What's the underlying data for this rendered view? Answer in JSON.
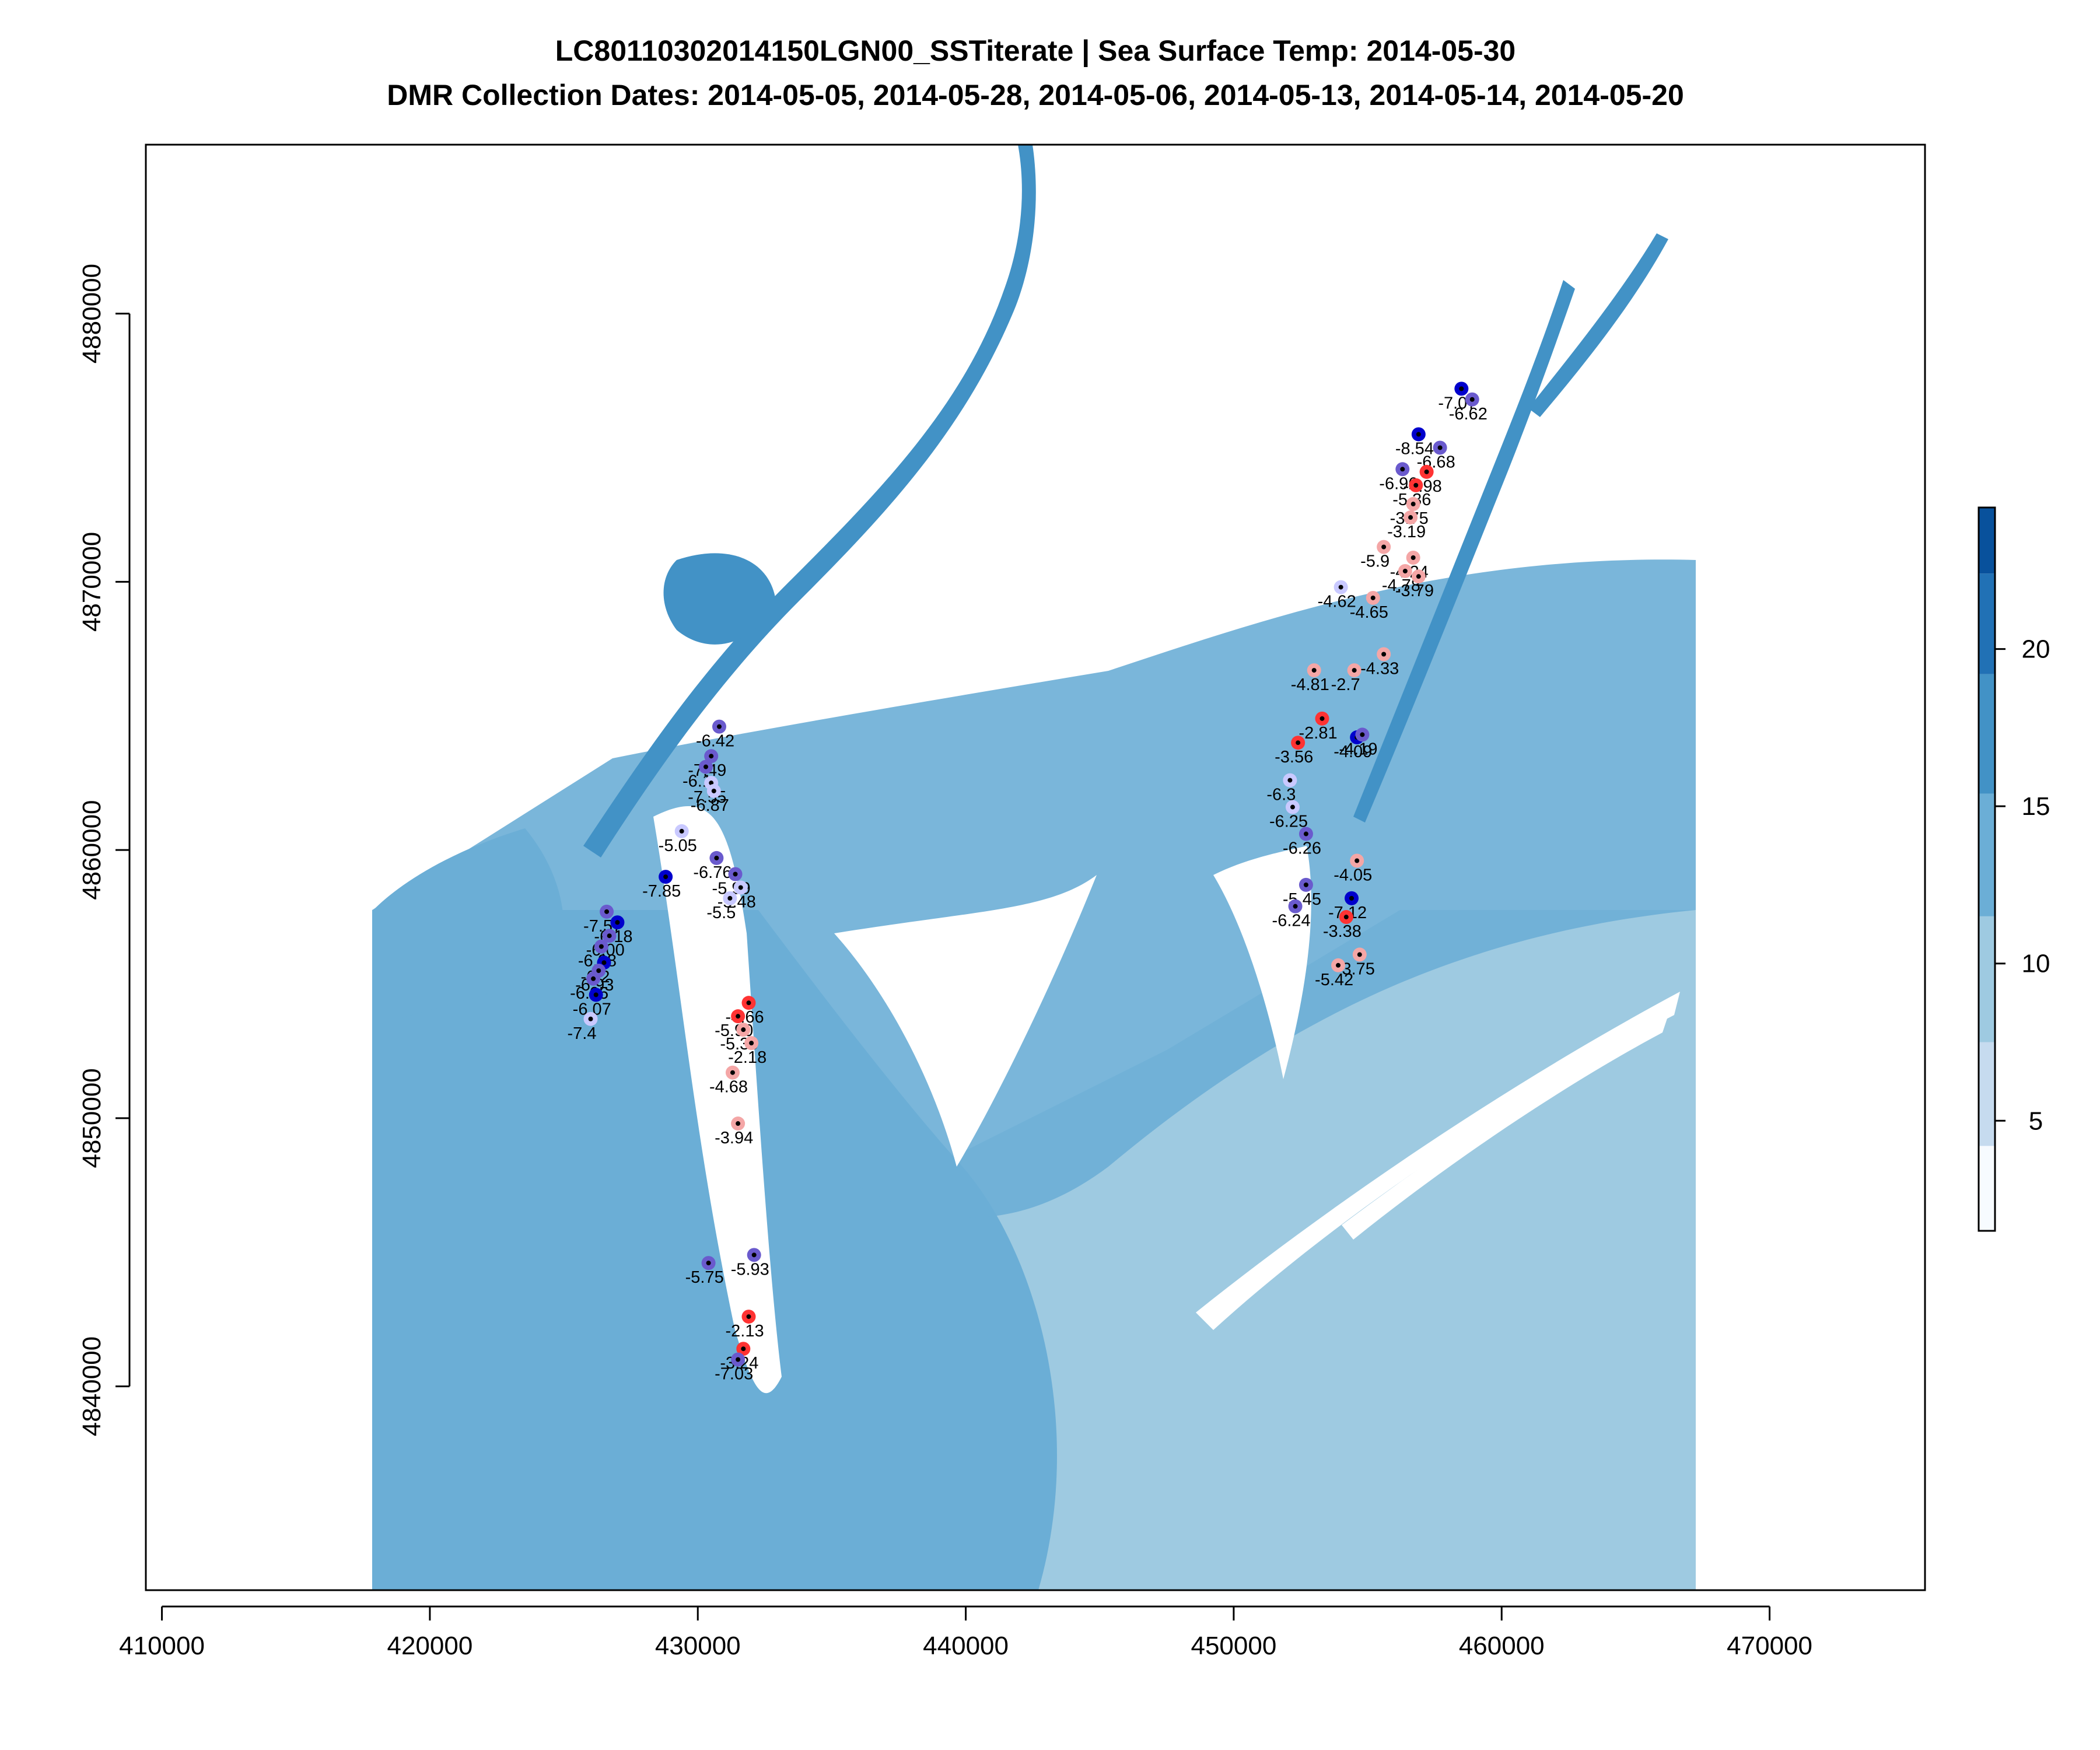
{
  "chart_data": {
    "type": "scatter",
    "title": "LC80110302014150LGN00_SSTiterate | Sea Surface Temp: 2014-05-30",
    "subtitle": "DMR Collection Dates: 2014-05-05, 2014-05-28, 2014-05-06, 2014-05-13, 2014-05-14, 2014-05-20",
    "xlabel": "",
    "ylabel": "",
    "xlim": [
      409400,
      475800
    ],
    "ylim": [
      4832400,
      4886300
    ],
    "x_ticks": [
      "410000",
      "420000",
      "430000",
      "440000",
      "450000",
      "460000",
      "470000"
    ],
    "y_ticks": [
      "4840000",
      "4850000",
      "4860000",
      "4870000",
      "4880000"
    ],
    "grid": false,
    "legend": "right colorbar",
    "colorbar": {
      "ticks": [
        "5",
        "10",
        "15",
        "20"
      ],
      "range": [
        1.5,
        24.5
      ],
      "bins": [
        {
          "from": 1.5,
          "to": 4.2,
          "color": "#f7fbff"
        },
        {
          "from": 4.2,
          "to": 7.5,
          "color": "#c6dbef"
        },
        {
          "from": 7.5,
          "to": 11.5,
          "color": "#9ecae1"
        },
        {
          "from": 11.5,
          "to": 15.4,
          "color": "#6baed6"
        },
        {
          "from": 15.4,
          "to": 19.2,
          "color": "#4292c6"
        },
        {
          "from": 19.2,
          "to": 22.4,
          "color": "#2171b5"
        },
        {
          "from": 22.4,
          "to": 24.5,
          "color": "#08519c"
        }
      ]
    },
    "raster": {
      "extent_x": [
        417800,
        467100
      ],
      "colors": {
        "ocean_outer": "#9ecae1",
        "ocean_inner": "#6baed6",
        "estuary": "#4292c6",
        "upper_river": "#4292c6",
        "land": "#ffffff"
      }
    },
    "point_colors": {
      "negative_strong": "#0000cc",
      "negative_mid": "#6a5acd",
      "negative_light": "#c9c9ff",
      "mild_pink": "#f4a6a6",
      "warm_red": "#ff3333"
    },
    "points": [
      {
        "x": 458500,
        "y": 4877200,
        "label": "-7.07",
        "color": "#0000cc"
      },
      {
        "x": 458900,
        "y": 4876800,
        "label": "-6.62",
        "color": "#6a5acd"
      },
      {
        "x": 456900,
        "y": 4875500,
        "label": "-8.54",
        "color": "#0000cc"
      },
      {
        "x": 457700,
        "y": 4875000,
        "label": "-6.68",
        "color": "#6a5acd"
      },
      {
        "x": 456300,
        "y": 4874200,
        "label": "-6.96",
        "color": "#6a5acd"
      },
      {
        "x": 457200,
        "y": 4874100,
        "label": "-4.98",
        "color": "#ff3333"
      },
      {
        "x": 456800,
        "y": 4873600,
        "label": "-5.36",
        "color": "#ff3333"
      },
      {
        "x": 456700,
        "y": 4872900,
        "label": "-3.75",
        "color": "#f4a6a6"
      },
      {
        "x": 456600,
        "y": 4872400,
        "label": "-3.19",
        "color": "#f4a6a6"
      },
      {
        "x": 455600,
        "y": 4871300,
        "label": "-5.9",
        "color": "#f4a6a6"
      },
      {
        "x": 456700,
        "y": 4870900,
        "label": "-4.24",
        "color": "#f4a6a6"
      },
      {
        "x": 456400,
        "y": 4870400,
        "label": "-4.78",
        "color": "#f4a6a6"
      },
      {
        "x": 456900,
        "y": 4870200,
        "label": "-3.79",
        "color": "#f4a6a6"
      },
      {
        "x": 455200,
        "y": 4869400,
        "label": "-4.65",
        "color": "#f4a6a6"
      },
      {
        "x": 454000,
        "y": 4869800,
        "label": "-4.62",
        "color": "#c9c9ff"
      },
      {
        "x": 455600,
        "y": 4867300,
        "label": "-4.33",
        "color": "#f4a6a6"
      },
      {
        "x": 454500,
        "y": 4866700,
        "label": "-2.7",
        "color": "#f4a6a6"
      },
      {
        "x": 453000,
        "y": 4866700,
        "label": "-4.81",
        "color": "#f4a6a6"
      },
      {
        "x": 453300,
        "y": 4864900,
        "label": "-2.81",
        "color": "#ff3333"
      },
      {
        "x": 454600,
        "y": 4864200,
        "label": "-4.09",
        "color": "#0000cc"
      },
      {
        "x": 452400,
        "y": 4864000,
        "label": "-3.56",
        "color": "#ff3333"
      },
      {
        "x": 454800,
        "y": 4864300,
        "label": "-4.19",
        "color": "#6a5acd"
      },
      {
        "x": 452100,
        "y": 4862600,
        "label": "-6.3",
        "color": "#c9c9ff"
      },
      {
        "x": 452200,
        "y": 4861600,
        "label": "-6.25",
        "color": "#c9c9ff"
      },
      {
        "x": 452700,
        "y": 4860600,
        "label": "-6.26",
        "color": "#6a5acd"
      },
      {
        "x": 454600,
        "y": 4859600,
        "label": "-4.05",
        "color": "#f4a6a6"
      },
      {
        "x": 452700,
        "y": 4858700,
        "label": "-5.45",
        "color": "#6a5acd"
      },
      {
        "x": 454400,
        "y": 4858200,
        "label": "-7.12",
        "color": "#0000cc"
      },
      {
        "x": 454200,
        "y": 4857500,
        "label": "-3.38",
        "color": "#ff3333"
      },
      {
        "x": 452300,
        "y": 4857900,
        "label": "-6.24",
        "color": "#6a5acd"
      },
      {
        "x": 454700,
        "y": 4856100,
        "label": "-3.75",
        "color": "#f4a6a6"
      },
      {
        "x": 453900,
        "y": 4855700,
        "label": "-5.42",
        "color": "#f4a6a6"
      },
      {
        "x": 430800,
        "y": 4864600,
        "label": "-6.42",
        "color": "#6a5acd"
      },
      {
        "x": 430500,
        "y": 4863500,
        "label": "-7.49",
        "color": "#6a5acd"
      },
      {
        "x": 430300,
        "y": 4863100,
        "label": "-6.1",
        "color": "#6a5acd"
      },
      {
        "x": 430500,
        "y": 4862500,
        "label": "-7.55",
        "color": "#c9c9ff"
      },
      {
        "x": 430600,
        "y": 4862200,
        "label": "-6.87",
        "color": "#c9c9ff"
      },
      {
        "x": 429400,
        "y": 4860700,
        "label": "-5.05",
        "color": "#c9c9ff"
      },
      {
        "x": 428800,
        "y": 4859000,
        "label": "-7.85",
        "color": "#0000cc"
      },
      {
        "x": 430700,
        "y": 4859700,
        "label": "-6.76",
        "color": "#6a5acd"
      },
      {
        "x": 431400,
        "y": 4859100,
        "label": "-5.99",
        "color": "#6a5acd"
      },
      {
        "x": 431600,
        "y": 4858600,
        "label": "-5.48",
        "color": "#c9c9ff"
      },
      {
        "x": 431200,
        "y": 4858200,
        "label": "-5.5",
        "color": "#c9c9ff"
      },
      {
        "x": 426600,
        "y": 4857700,
        "label": "-7.57",
        "color": "#6a5acd"
      },
      {
        "x": 427000,
        "y": 4857300,
        "label": "-6.18",
        "color": "#0000cc"
      },
      {
        "x": 426700,
        "y": 4856800,
        "label": "-6.00",
        "color": "#6a5acd"
      },
      {
        "x": 426400,
        "y": 4856400,
        "label": "-6.08",
        "color": "#6a5acd"
      },
      {
        "x": 426500,
        "y": 4855800,
        "label": "-6.2",
        "color": "#0000cc"
      },
      {
        "x": 426300,
        "y": 4855500,
        "label": "-6.93",
        "color": "#6a5acd"
      },
      {
        "x": 426100,
        "y": 4855200,
        "label": "-6.05",
        "color": "#6a5acd"
      },
      {
        "x": 426200,
        "y": 4854600,
        "label": "-6.07",
        "color": "#0000cc"
      },
      {
        "x": 426000,
        "y": 4853700,
        "label": "-7.4",
        "color": "#c9c9ff"
      },
      {
        "x": 431900,
        "y": 4854300,
        "label": "-4.66",
        "color": "#ff3333"
      },
      {
        "x": 431500,
        "y": 4853800,
        "label": "-5.90",
        "color": "#ff3333"
      },
      {
        "x": 431700,
        "y": 4853300,
        "label": "-5.39",
        "color": "#f4a6a6"
      },
      {
        "x": 432000,
        "y": 4852800,
        "label": "-2.18",
        "color": "#f4a6a6"
      },
      {
        "x": 431300,
        "y": 4851700,
        "label": "-4.68",
        "color": "#f4a6a6"
      },
      {
        "x": 431500,
        "y": 4849800,
        "label": "-3.94",
        "color": "#f4a6a6"
      },
      {
        "x": 430400,
        "y": 4844600,
        "label": "-5.75",
        "color": "#6a5acd"
      },
      {
        "x": 432100,
        "y": 4844900,
        "label": "-5.93",
        "color": "#6a5acd"
      },
      {
        "x": 431900,
        "y": 4842600,
        "label": "-2.13",
        "color": "#ff3333"
      },
      {
        "x": 431700,
        "y": 4841400,
        "label": "-3.24",
        "color": "#ff3333"
      },
      {
        "x": 431500,
        "y": 4841000,
        "label": "-7.03",
        "color": "#6a5acd"
      }
    ]
  }
}
